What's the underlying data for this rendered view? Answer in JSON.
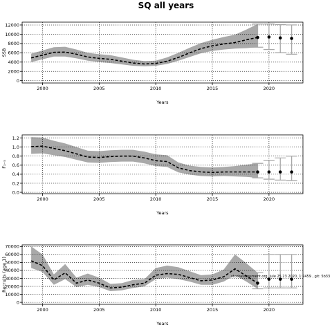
{
  "chart_data": {
    "suptitle": "SQ all years",
    "annotation": "stockassessment.org, Jule 25 23 2020, 1:2459 , git: 5b33",
    "panels": [
      {
        "type": "line",
        "ylabel": "SSB",
        "xlabel": "Years",
        "xlim": [
          1998.2,
          2023.0
        ],
        "ylim": [
          -500,
          12600
        ],
        "xticks": [
          2000,
          2005,
          2010,
          2015,
          2020
        ],
        "yticks": [
          0,
          2000,
          4000,
          6000,
          8000,
          10000,
          12000
        ],
        "grid": true,
        "x": [
          1999,
          2000,
          2001,
          2002,
          2003,
          2004,
          2005,
          2006,
          2007,
          2008,
          2009,
          2010,
          2011,
          2012,
          2013,
          2014,
          2015,
          2016,
          2017,
          2018,
          2019
        ],
        "estimate": [
          4900,
          5500,
          6100,
          6150,
          5700,
          5100,
          4800,
          4600,
          4200,
          3800,
          3600,
          3700,
          4200,
          5000,
          6000,
          6900,
          7500,
          7900,
          8200,
          8800,
          9300
        ],
        "lower": [
          4000,
          4600,
          5200,
          5200,
          4800,
          4300,
          4000,
          3800,
          3500,
          3200,
          3100,
          3200,
          3600,
          4300,
          5100,
          5900,
          6400,
          6700,
          6900,
          7000,
          7200
        ],
        "upper": [
          5800,
          6500,
          7200,
          7300,
          6700,
          6000,
          5700,
          5500,
          5000,
          4500,
          4200,
          4300,
          5000,
          6000,
          7100,
          8100,
          8800,
          9400,
          9900,
          11000,
          12200
        ],
        "forecast": {
          "x": [
            2019,
            2020,
            2021,
            2022
          ],
          "median": [
            9300,
            9400,
            9200,
            9100
          ],
          "lower": [
            7200,
            6700,
            6000,
            5700
          ],
          "upper": [
            12200,
            12200,
            12100,
            12000
          ]
        }
      },
      {
        "type": "line",
        "ylabel": "F₃₋₅",
        "xlabel": "Years",
        "xlim": [
          1998.2,
          2023.0
        ],
        "ylim": [
          -0.03,
          1.27
        ],
        "xticks": [
          2000,
          2005,
          2010,
          2015,
          2020
        ],
        "yticks": [
          0.0,
          0.2,
          0.4,
          0.6,
          0.8,
          1.0,
          1.2
        ],
        "yticklabels": [
          "0.0",
          "0.2",
          "0.4",
          "0.6",
          "0.8",
          "1.0",
          "1.2"
        ],
        "grid": true,
        "x": [
          1999,
          2000,
          2001,
          2002,
          2003,
          2004,
          2005,
          2006,
          2007,
          2008,
          2009,
          2010,
          2011,
          2012,
          2013,
          2014,
          2015,
          2016,
          2017,
          2018,
          2019
        ],
        "estimate": [
          1.01,
          1.02,
          0.97,
          0.92,
          0.85,
          0.78,
          0.77,
          0.79,
          0.8,
          0.8,
          0.76,
          0.7,
          0.68,
          0.54,
          0.48,
          0.45,
          0.44,
          0.45,
          0.45,
          0.45,
          0.45
        ],
        "lower": [
          0.85,
          0.86,
          0.82,
          0.78,
          0.72,
          0.66,
          0.65,
          0.67,
          0.68,
          0.68,
          0.64,
          0.58,
          0.56,
          0.44,
          0.39,
          0.36,
          0.35,
          0.36,
          0.35,
          0.34,
          0.32
        ],
        "upper": [
          1.22,
          1.21,
          1.14,
          1.08,
          1.0,
          0.92,
          0.91,
          0.93,
          0.94,
          0.94,
          0.9,
          0.84,
          0.82,
          0.66,
          0.59,
          0.56,
          0.55,
          0.56,
          0.58,
          0.61,
          0.64
        ],
        "forecast": {
          "x": [
            2019,
            2020,
            2021,
            2022
          ],
          "median": [
            0.45,
            0.45,
            0.45,
            0.45
          ],
          "lower": [
            0.32,
            0.29,
            0.27,
            0.26
          ],
          "upper": [
            0.64,
            0.7,
            0.76,
            0.8
          ]
        }
      },
      {
        "type": "line",
        "ylabel": "Recruits (age 1)",
        "xlabel": "Years",
        "xlim": [
          1998.2,
          2023.0
        ],
        "ylim": [
          -2500,
          72000
        ],
        "xticks": [
          2000,
          2005,
          2010,
          2015,
          2020
        ],
        "yticks": [
          0,
          10000,
          20000,
          30000,
          40000,
          50000,
          60000,
          70000
        ],
        "grid": true,
        "x": [
          1999,
          2000,
          2001,
          2002,
          2003,
          2004,
          2005,
          2006,
          2007,
          2008,
          2009,
          2010,
          2011,
          2012,
          2013,
          2014,
          2015,
          2016,
          2017,
          2018,
          2019
        ],
        "estimate": [
          52000,
          46000,
          28000,
          37000,
          24000,
          28000,
          24000,
          18000,
          19000,
          22000,
          24000,
          34000,
          36000,
          35000,
          31000,
          27000,
          28000,
          32000,
          42000,
          33000,
          24000
        ],
        "lower": [
          43000,
          38000,
          22000,
          29000,
          19000,
          22000,
          19000,
          14000,
          15000,
          18000,
          20000,
          29000,
          31000,
          29000,
          26000,
          22000,
          22000,
          26000,
          34000,
          26000,
          17000
        ],
        "upper": [
          70000,
          60000,
          35000,
          48000,
          31000,
          36000,
          31000,
          23000,
          24000,
          28000,
          29000,
          43000,
          46000,
          44000,
          39000,
          34000,
          35000,
          41000,
          60000,
          49000,
          37000
        ],
        "forecast": {
          "x": [
            2019,
            2020,
            2021,
            2022
          ],
          "median": [
            24000,
            29000,
            29000,
            29000
          ],
          "lower": [
            17000,
            18000,
            18000,
            18000
          ],
          "upper": [
            37000,
            60000,
            60000,
            60000
          ]
        }
      }
    ]
  }
}
